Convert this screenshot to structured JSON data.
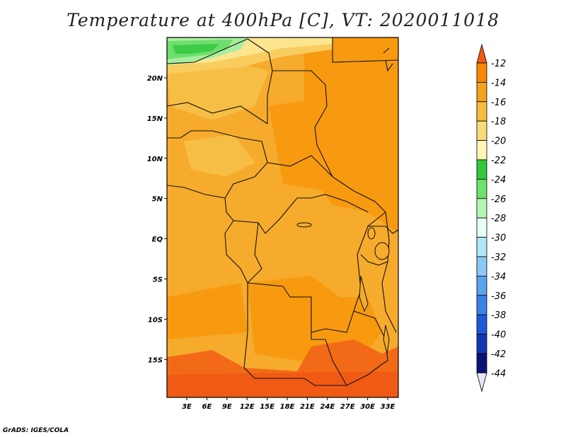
{
  "title": "Temperature at 400hPa [C], VT: 2020011018",
  "credit": "GrADS: IGES/COLA",
  "map": {
    "lat_labels": [
      "20N",
      "15N",
      "10N",
      "5N",
      "EQ",
      "5S",
      "10S",
      "15S"
    ],
    "lon_labels": [
      "3E",
      "6E",
      "9E",
      "12E",
      "15E",
      "18E",
      "21E",
      "24E",
      "27E",
      "30E",
      "33E"
    ]
  },
  "colorbar": {
    "labels": [
      "-12",
      "-14",
      "-16",
      "-18",
      "-20",
      "-22",
      "-24",
      "-26",
      "-28",
      "-30",
      "-32",
      "-34",
      "-36",
      "-38",
      "-40",
      "-42",
      "-44"
    ],
    "colors": [
      "#f05a14",
      "#f98808",
      "#f5a21c",
      "#f7bc3c",
      "#fbdb78",
      "#fff6b4",
      "#32c83c",
      "#6ee16e",
      "#b4f5b4",
      "#e6fff8",
      "#b4e6fa",
      "#8cc8f5",
      "#5aa5ec",
      "#3c82e6",
      "#1e5adc",
      "#1438b4",
      "#0a1478",
      "#e8e6fa"
    ]
  }
}
